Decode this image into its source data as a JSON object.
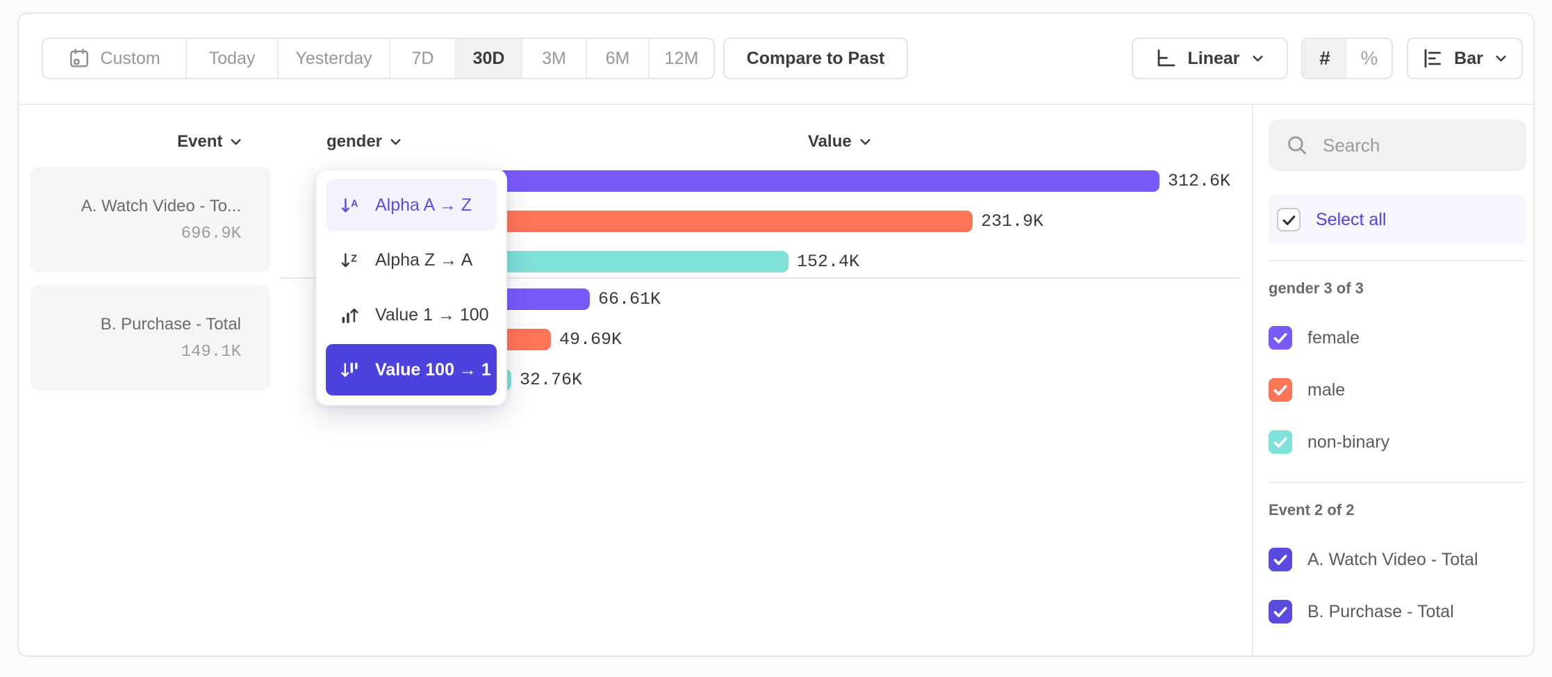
{
  "toolbar": {
    "date_ranges": [
      {
        "label": "Custom",
        "icon": "calendar-icon",
        "active": false
      },
      {
        "label": "Today",
        "active": false
      },
      {
        "label": "Yesterday",
        "active": false
      },
      {
        "label": "7D",
        "active": false
      },
      {
        "label": "30D",
        "active": true
      },
      {
        "label": "3M",
        "active": false
      },
      {
        "label": "6M",
        "active": false
      },
      {
        "label": "12M",
        "active": false
      }
    ],
    "compare_label": "Compare to Past",
    "scale": {
      "label": "Linear",
      "icon": "linear-scale-icon"
    },
    "number_format": {
      "options": [
        "#",
        "%"
      ],
      "active": "#"
    },
    "chart_type": {
      "label": "Bar",
      "icon": "bar-chart-icon"
    }
  },
  "columns": {
    "event": "Event",
    "breakdown": "gender",
    "value": "Value"
  },
  "event_cards": [
    {
      "name": "A. Watch Video - To...",
      "value": "696.9K"
    },
    {
      "name": "B. Purchase - Total",
      "value": "149.1K"
    }
  ],
  "sort_menu": {
    "items": [
      {
        "label": "Alpha A → Z",
        "icon": "sort-alpha-asc-icon",
        "state": "hover"
      },
      {
        "label": "Alpha Z → A",
        "icon": "sort-alpha-desc-icon",
        "state": "normal"
      },
      {
        "label": "Value 1 → 100",
        "icon": "sort-value-asc-icon",
        "state": "normal"
      },
      {
        "label": "Value 100 → 1",
        "icon": "sort-value-desc-icon",
        "state": "selected"
      }
    ]
  },
  "chart_data": {
    "type": "bar",
    "orientation": "horizontal",
    "category_axis_label": "Event",
    "breakdown_property": "gender",
    "value_axis_label": "Value",
    "sort": "Value 100 → 1",
    "xlim": [
      0,
      345000
    ],
    "groups": [
      {
        "event": "A. Watch Video - Total",
        "total_label": "696.9K",
        "bars": [
          {
            "segment": "female",
            "value": 312600,
            "label": "312.6K",
            "color": "#7a59fa"
          },
          {
            "segment": "male",
            "value": 231900,
            "label": "231.9K",
            "color": "#ff7557"
          },
          {
            "segment": "non-binary",
            "value": 152400,
            "label": "152.4K",
            "color": "#80e1d9"
          }
        ]
      },
      {
        "event": "B. Purchase - Total",
        "total_label": "149.1K",
        "bars": [
          {
            "segment": "female",
            "value": 66610,
            "label": "66.61K",
            "color": "#7a59fa"
          },
          {
            "segment": "male",
            "value": 49690,
            "label": "49.69K",
            "color": "#ff7557"
          },
          {
            "segment": "non-binary",
            "value": 32760,
            "label": "32.76K",
            "color": "#80e1d9"
          }
        ]
      }
    ]
  },
  "sidebar": {
    "search_placeholder": "Search",
    "select_all_label": "Select all",
    "select_all_checked": true,
    "sections": [
      {
        "title": "gender 3 of 3",
        "items": [
          {
            "label": "female",
            "checked": true,
            "color": "#7a59fa"
          },
          {
            "label": "male",
            "checked": true,
            "color": "#ff7557"
          },
          {
            "label": "non-binary",
            "checked": true,
            "color": "#80e1d9"
          }
        ]
      },
      {
        "title": "Event 2 of 2",
        "items": [
          {
            "label": "A. Watch Video - Total",
            "checked": true,
            "color": "#5a4bdf"
          },
          {
            "label": "B. Purchase - Total",
            "checked": true,
            "color": "#5a4bdf"
          }
        ]
      }
    ]
  },
  "colors": {
    "accent": "#7856ff",
    "orange": "#ff7557",
    "teal": "#80e1d9",
    "sort_selected_bg": "#4c42dd",
    "sort_hover_text": "#5b4fe3"
  }
}
